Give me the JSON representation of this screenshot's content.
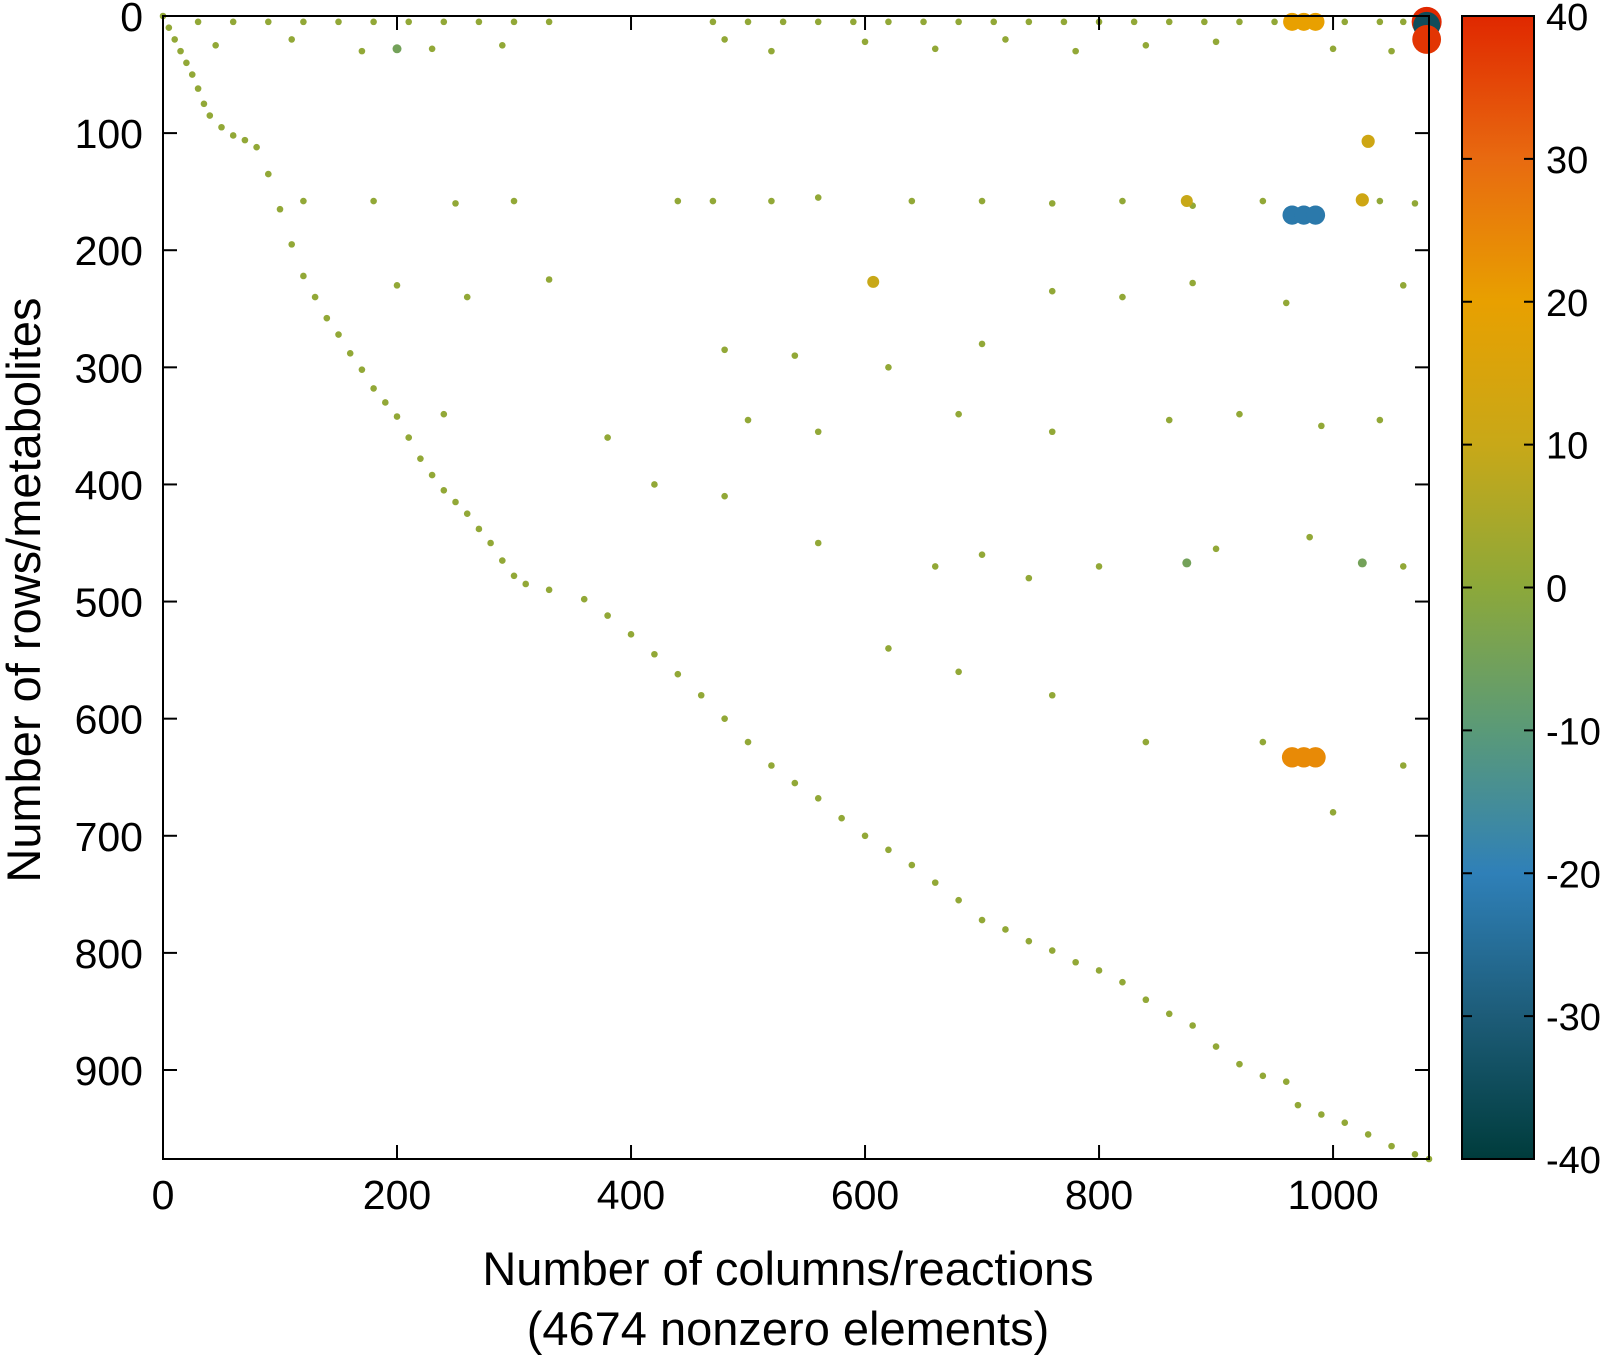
{
  "chart_data": {
    "type": "scatter",
    "xlabel": "Number of columns/reactions",
    "xlabel2": "(4674 nonzero elements)",
    "ylabel": "Number of rows/metabolites",
    "xlim": [
      0,
      1082
    ],
    "ylim": [
      976,
      0
    ],
    "y_inverted": true,
    "xticks": [
      0,
      200,
      400,
      600,
      800,
      1000
    ],
    "yticks": [
      0,
      100,
      200,
      300,
      400,
      500,
      600,
      700,
      800,
      900
    ],
    "clim": [
      -40,
      40
    ],
    "cticks": [
      -40,
      -30,
      -20,
      -10,
      0,
      10,
      20,
      30,
      40
    ],
    "colormap": [
      "#003c3c",
      "#1d5c78",
      "#2f80b8",
      "#5a9a78",
      "#8ca83a",
      "#c8a818",
      "#e8a000",
      "#e86a10",
      "#e02800"
    ],
    "x": [
      0,
      5,
      10,
      15,
      20,
      25,
      30,
      35,
      40,
      50,
      60,
      70,
      80,
      90,
      100,
      110,
      120,
      130,
      140,
      150,
      160,
      170,
      180,
      190,
      200,
      210,
      220,
      230,
      240,
      250,
      260,
      270,
      280,
      290,
      300,
      310,
      330,
      360,
      380,
      400,
      420,
      440,
      460,
      480,
      500,
      520,
      540,
      560,
      580,
      600,
      620,
      640,
      660,
      680,
      700,
      720,
      740,
      760,
      780,
      800,
      820,
      840,
      860,
      880,
      900,
      920,
      940,
      960,
      970,
      990,
      1010,
      1030,
      1050,
      1070,
      1082,
      30,
      60,
      90,
      120,
      150,
      180,
      210,
      240,
      270,
      300,
      330,
      470,
      500,
      530,
      560,
      590,
      620,
      650,
      680,
      710,
      740,
      770,
      800,
      830,
      860,
      890,
      920,
      950,
      1010,
      1040,
      1060,
      45,
      110,
      170,
      230,
      290,
      480,
      520,
      600,
      660,
      720,
      780,
      840,
      900,
      1000,
      1050,
      120,
      180,
      250,
      300,
      440,
      470,
      520,
      560,
      640,
      700,
      760,
      820,
      880,
      940,
      1040,
      1070,
      200,
      260,
      330,
      480,
      540,
      620,
      700,
      760,
      820,
      880,
      960,
      1060,
      240,
      380,
      500,
      560,
      680,
      760,
      860,
      920,
      990,
      1040,
      420,
      480,
      560,
      660,
      700,
      740,
      800,
      900,
      980,
      1060,
      620,
      680,
      760,
      840,
      940,
      1000,
      1060,
      965,
      975,
      985,
      1080,
      1080,
      1080,
      965,
      975,
      985,
      1030,
      1025,
      875,
      607,
      875,
      1025,
      200,
      965,
      975,
      985
    ],
    "y": [
      0,
      10,
      20,
      30,
      40,
      50,
      62,
      75,
      85,
      95,
      102,
      106,
      112,
      135,
      165,
      195,
      222,
      240,
      258,
      272,
      288,
      302,
      318,
      330,
      342,
      360,
      378,
      392,
      405,
      415,
      425,
      438,
      450,
      465,
      478,
      485,
      490,
      498,
      512,
      528,
      545,
      562,
      580,
      600,
      620,
      640,
      655,
      668,
      685,
      700,
      712,
      725,
      740,
      755,
      772,
      780,
      790,
      798,
      808,
      815,
      825,
      840,
      852,
      862,
      880,
      895,
      905,
      910,
      930,
      938,
      945,
      955,
      965,
      972,
      976,
      5,
      5,
      5,
      5,
      5,
      5,
      5,
      5,
      5,
      5,
      5,
      5,
      5,
      5,
      5,
      5,
      5,
      5,
      5,
      5,
      5,
      5,
      5,
      5,
      5,
      5,
      5,
      5,
      5,
      5,
      5,
      25,
      20,
      30,
      28,
      25,
      20,
      30,
      22,
      28,
      20,
      30,
      25,
      22,
      28,
      30,
      158,
      158,
      160,
      158,
      158,
      158,
      158,
      155,
      158,
      158,
      160,
      158,
      162,
      158,
      158,
      160,
      230,
      240,
      225,
      285,
      290,
      300,
      280,
      235,
      240,
      228,
      245,
      230,
      340,
      360,
      345,
      355,
      340,
      355,
      345,
      340,
      350,
      345,
      400,
      410,
      450,
      470,
      460,
      480,
      470,
      455,
      445,
      470,
      540,
      560,
      580,
      620,
      620,
      680,
      640,
      5,
      5,
      5,
      5,
      8,
      20,
      170,
      170,
      170,
      107,
      157,
      158,
      227,
      467,
      467,
      28,
      633,
      633,
      633
    ],
    "c": [
      1,
      1,
      1,
      1,
      1,
      1,
      1,
      1,
      1,
      1,
      1,
      1,
      1,
      1,
      1,
      1,
      1,
      1,
      1,
      1,
      1,
      1,
      1,
      1,
      1,
      1,
      1,
      1,
      1,
      1,
      1,
      1,
      1,
      1,
      1,
      1,
      1,
      1,
      1,
      1,
      1,
      1,
      1,
      1,
      1,
      1,
      1,
      1,
      1,
      1,
      1,
      1,
      1,
      1,
      1,
      1,
      1,
      1,
      1,
      1,
      1,
      1,
      1,
      1,
      1,
      1,
      1,
      1,
      1,
      1,
      1,
      1,
      1,
      1,
      1,
      1,
      1,
      1,
      1,
      1,
      1,
      1,
      1,
      1,
      1,
      1,
      1,
      1,
      1,
      1,
      1,
      1,
      1,
      1,
      1,
      1,
      1,
      1,
      1,
      1,
      1,
      1,
      1,
      1,
      1,
      1,
      1,
      1,
      1,
      1,
      1,
      1,
      1,
      1,
      1,
      1,
      1,
      1,
      1,
      1,
      1,
      1,
      1,
      1,
      1,
      1,
      1,
      1,
      1,
      1,
      1,
      1,
      1,
      1,
      1,
      1,
      1,
      1,
      1,
      1,
      1,
      1,
      1,
      1,
      1,
      1,
      1,
      1,
      1,
      1,
      1,
      1,
      1,
      1,
      1,
      1,
      1,
      1,
      1,
      1,
      1,
      1,
      1,
      1,
      1,
      1,
      1,
      1,
      1,
      1,
      1,
      1,
      1,
      1,
      1,
      1,
      20,
      20,
      20,
      40,
      -35,
      38,
      -22,
      -22,
      -22,
      12,
      12,
      10,
      10,
      -5,
      -5,
      -5,
      24,
      24,
      24
    ]
  }
}
